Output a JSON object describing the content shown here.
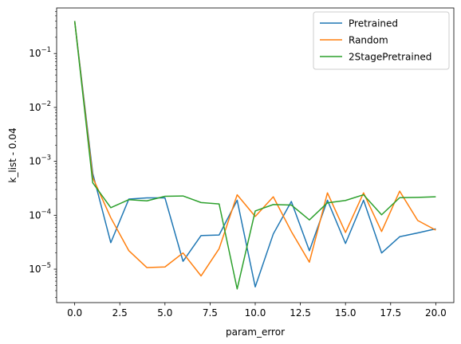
{
  "chart_data": {
    "type": "line",
    "xlabel": "param_error",
    "ylabel": "k_list - 0.04",
    "yscale": "log",
    "xlim": [
      -1.0,
      21.0
    ],
    "ylim": [
      2.4e-06,
      0.7
    ],
    "xticks": [
      0.0,
      2.5,
      5.0,
      7.5,
      10.0,
      12.5,
      15.0,
      17.5,
      20.0
    ],
    "xtick_labels": [
      "0.0",
      "2.5",
      "5.0",
      "7.5",
      "10.0",
      "12.5",
      "15.0",
      "17.5",
      "20.0"
    ],
    "yticks": [
      {
        "value": 1e-05,
        "base": "10",
        "exp": "−5"
      },
      {
        "value": 0.0001,
        "base": "10",
        "exp": "−4"
      },
      {
        "value": 0.001,
        "base": "10",
        "exp": "−3"
      },
      {
        "value": 0.01,
        "base": "10",
        "exp": "−2"
      },
      {
        "value": 0.1,
        "base": "10",
        "exp": "−1"
      }
    ],
    "legend_position": "top-right",
    "grid": false,
    "x": [
      0,
      1,
      2,
      3,
      4,
      5,
      6,
      7,
      8,
      9,
      10,
      11,
      12,
      13,
      14,
      15,
      16,
      17,
      18,
      19,
      20
    ],
    "series": [
      {
        "name": "Pretrained",
        "color": "#1f77b4",
        "values": [
          0.4,
          0.0006,
          3.1e-05,
          0.0002,
          0.00021,
          0.00021,
          1.4e-05,
          4.2e-05,
          4.3e-05,
          0.00019,
          4.7e-06,
          4.5e-05,
          0.00018,
          2.2e-05,
          0.00019,
          3e-05,
          0.00019,
          2e-05,
          4e-05,
          4.7e-05,
          5.6e-05
        ]
      },
      {
        "name": "Random",
        "color": "#ff7f0e",
        "values": [
          0.4,
          0.0005,
          9e-05,
          2.2e-05,
          1.07e-05,
          1.1e-05,
          2e-05,
          7.5e-06,
          2.4e-05,
          0.00024,
          9.5e-05,
          0.00022,
          5e-05,
          1.35e-05,
          0.00026,
          4.8e-05,
          0.00026,
          5e-05,
          0.00028,
          8e-05,
          5.3e-05
        ]
      },
      {
        "name": "2StagePretrained",
        "color": "#2ca02c",
        "values": [
          0.4,
          0.0004,
          0.000138,
          0.000195,
          0.000185,
          0.000225,
          0.000228,
          0.000172,
          0.000162,
          4.3e-06,
          0.00012,
          0.000158,
          0.000155,
          8.2e-05,
          0.00017,
          0.000188,
          0.00024,
          0.000102,
          0.000212,
          0.000215,
          0.00022
        ]
      }
    ]
  }
}
